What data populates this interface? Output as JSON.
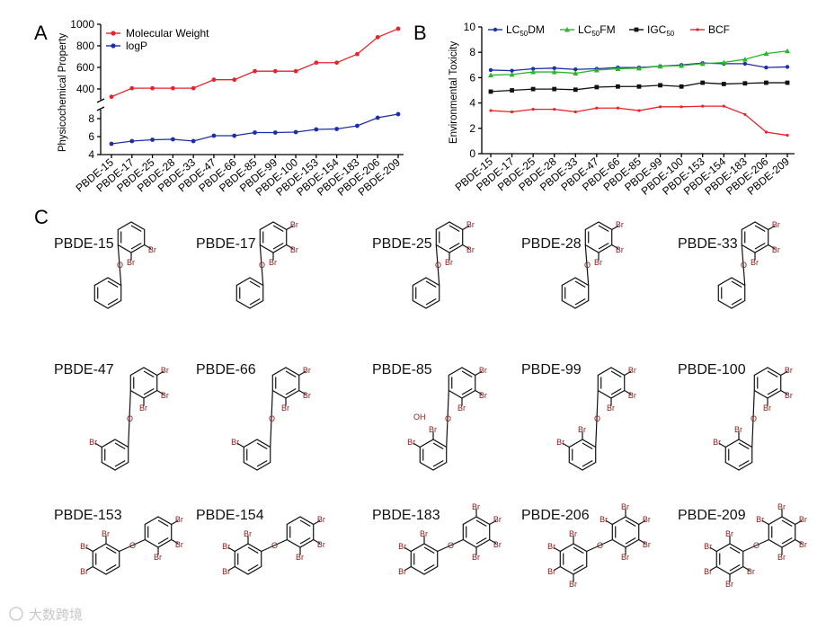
{
  "panels": {
    "a": "A",
    "b": "B",
    "c": "C"
  },
  "chart_data": [
    {
      "type": "line",
      "panel": "A",
      "ylabel": "Physicochemical Property",
      "categories": [
        "PBDE-15",
        "PBDE-17",
        "PBDE-25",
        "PBDE-28",
        "PBDE-33",
        "PBDE-47",
        "PBDE-66",
        "PBDE-85",
        "PBDE-99",
        "PBDE-100",
        "PBDE-153",
        "PBDE-154",
        "PBDE-183",
        "PBDE-206",
        "PBDE-209"
      ],
      "y_break": true,
      "upper_ylim": [
        300,
        1000
      ],
      "upper_ticks": [
        "400",
        "600",
        "800",
        "1000"
      ],
      "lower_ylim": [
        4,
        9
      ],
      "lower_ticks": [
        "4",
        "6",
        "8"
      ],
      "legend_position": "top-left",
      "series": [
        {
          "name": "Molecular Weight",
          "color": "#e8232b",
          "axis": "upper",
          "values": [
            328,
            407,
            407,
            407,
            407,
            486,
            486,
            565,
            565,
            565,
            644,
            644,
            723,
            880,
            959
          ]
        },
        {
          "name": "logP",
          "color": "#1c2fa8",
          "axis": "lower",
          "values": [
            5.2,
            5.5,
            5.65,
            5.7,
            5.5,
            6.1,
            6.1,
            6.45,
            6.45,
            6.5,
            6.8,
            6.85,
            7.2,
            8.1,
            8.5
          ]
        }
      ]
    },
    {
      "type": "line",
      "panel": "B",
      "ylabel": "Environmental Toxicity",
      "categories": [
        "PBDE-15",
        "PBDE-17",
        "PBDE-25",
        "PBDE-28",
        "PBDE-33",
        "PBDE-47",
        "PBDE-66",
        "PBDE-85",
        "PBDE-99",
        "PBDE-100",
        "PBDE-153",
        "PBDE-154",
        "PBDE-183",
        "PBDE-206",
        "PBDE-209"
      ],
      "ylim": [
        0,
        10
      ],
      "yticks": [
        "0",
        "2",
        "4",
        "6",
        "8",
        "10"
      ],
      "legend_position": "top",
      "series": [
        {
          "name": "LC50DM",
          "label_main": "LC",
          "label_sub": "50",
          "label_tail": "DM",
          "color": "#1c2fa8",
          "values": [
            6.6,
            6.55,
            6.7,
            6.75,
            6.65,
            6.7,
            6.8,
            6.8,
            6.9,
            7.0,
            7.15,
            7.1,
            7.1,
            6.8,
            6.85
          ]
        },
        {
          "name": "LC50FM",
          "label_main": "LC",
          "label_sub": "50",
          "label_tail": "FM",
          "color": "#2cb52c",
          "values": [
            6.2,
            6.25,
            6.45,
            6.45,
            6.35,
            6.6,
            6.7,
            6.75,
            6.9,
            6.95,
            7.1,
            7.2,
            7.45,
            7.9,
            8.1
          ]
        },
        {
          "name": "IGC50",
          "label_main": "IGC",
          "label_sub": "50",
          "label_tail": "",
          "color": "#111111",
          "values": [
            4.9,
            5.0,
            5.1,
            5.1,
            5.05,
            5.25,
            5.3,
            5.3,
            5.4,
            5.3,
            5.6,
            5.5,
            5.55,
            5.6,
            5.6
          ]
        },
        {
          "name": "BCF",
          "label_main": "BCF",
          "label_sub": "",
          "label_tail": "",
          "color": "#e8232b",
          "values": [
            3.4,
            3.3,
            3.5,
            3.5,
            3.3,
            3.6,
            3.6,
            3.4,
            3.7,
            3.7,
            3.75,
            3.75,
            3.1,
            1.7,
            1.45
          ]
        }
      ]
    }
  ],
  "structures": {
    "title": "C",
    "compounds": [
      "PBDE-15",
      "PBDE-17",
      "PBDE-25",
      "PBDE-28",
      "PBDE-33",
      "PBDE-47",
      "PBDE-66",
      "PBDE-85",
      "PBDE-99",
      "PBDE-100",
      "PBDE-153",
      "PBDE-154",
      "PBDE-183",
      "PBDE-206",
      "PBDE-209"
    ],
    "atoms": {
      "bromine": "Br",
      "oxygen": "O",
      "hydroxyl": "OH"
    },
    "bromine_counts": [
      2,
      3,
      3,
      3,
      3,
      4,
      4,
      5,
      5,
      5,
      6,
      6,
      7,
      9,
      10
    ],
    "has_hydroxyl": [
      false,
      false,
      false,
      false,
      false,
      false,
      false,
      true,
      false,
      false,
      false,
      false,
      false,
      false,
      false
    ]
  },
  "watermark": "大数跨境"
}
